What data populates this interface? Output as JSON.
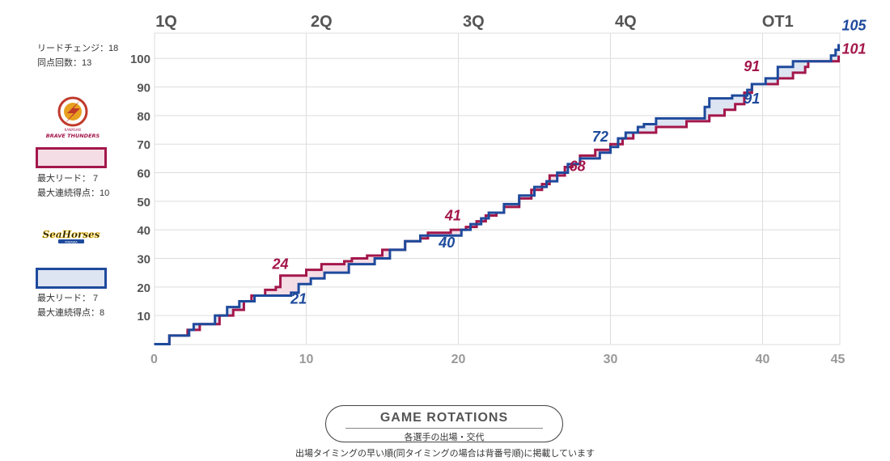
{
  "colors": {
    "team_a": "#a3174b",
    "team_b": "#1e4a9c",
    "team_a_fill": "#f5dde6",
    "team_b_fill": "#dde4f2",
    "grid": "#dddddd",
    "axis_text": "#999999"
  },
  "stats": {
    "lead_changes": "リードチェンジ：18",
    "ties": "同点回数：13"
  },
  "team_a": {
    "logo_name": "BRAVE THUNDERS",
    "logo_sub": "KAWASAKI",
    "max_lead": "最大リード：  7",
    "max_run": "最大連続得点：10"
  },
  "team_b": {
    "logo_name": "SeaHorses",
    "logo_sub": "MIKAWA",
    "max_lead": "最大リード：  7",
    "max_run": "最大連続得点：8"
  },
  "rotation_button": {
    "title": "GAME ROTATIONS",
    "subtitle": "各選手の出場・交代"
  },
  "footnote": "出場タイミングの早い順(同タイミングの場合は背番号順)に掲載しています",
  "chart_data": {
    "type": "line",
    "xlim": [
      0,
      45
    ],
    "ylim": [
      0,
      107
    ],
    "x_ticks": [
      0,
      10,
      20,
      30,
      40,
      45
    ],
    "y_ticks": [
      10,
      20,
      30,
      40,
      50,
      60,
      70,
      80,
      90,
      100
    ],
    "grid": true,
    "period_labels": [
      {
        "label": "1Q",
        "x": 0.8
      },
      {
        "label": "2Q",
        "x": 11
      },
      {
        "label": "3Q",
        "x": 21
      },
      {
        "label": "4Q",
        "x": 31
      },
      {
        "label": "OT1",
        "x": 41
      }
    ],
    "series": [
      {
        "name": "BRAVE THUNDERS",
        "color": "#a3174b",
        "points": [
          [
            0,
            0
          ],
          [
            1.0,
            3
          ],
          [
            2.2,
            5
          ],
          [
            3,
            7
          ],
          [
            4.3,
            10
          ],
          [
            5.2,
            12
          ],
          [
            5.9,
            15
          ],
          [
            6.4,
            17
          ],
          [
            7.3,
            19
          ],
          [
            8.0,
            20
          ],
          [
            8.3,
            24
          ],
          [
            10,
            26
          ],
          [
            11,
            28
          ],
          [
            12.5,
            29
          ],
          [
            13,
            30
          ],
          [
            14,
            31
          ],
          [
            15,
            33
          ],
          [
            16.5,
            36
          ],
          [
            17.5,
            37
          ],
          [
            18.0,
            39
          ],
          [
            19.5,
            40
          ],
          [
            20.5,
            41
          ],
          [
            21.2,
            43
          ],
          [
            21.8,
            45
          ],
          [
            22.5,
            46
          ],
          [
            23.0,
            48
          ],
          [
            24.0,
            51
          ],
          [
            24.8,
            54
          ],
          [
            25.5,
            56
          ],
          [
            26.0,
            59
          ],
          [
            27.0,
            62
          ],
          [
            27.5,
            63
          ],
          [
            28.0,
            66
          ],
          [
            29.0,
            68
          ],
          [
            30.0,
            70
          ],
          [
            30.8,
            72
          ],
          [
            31.5,
            74
          ],
          [
            33,
            76
          ],
          [
            35,
            78
          ],
          [
            36.5,
            80
          ],
          [
            37.5,
            82
          ],
          [
            38.2,
            84
          ],
          [
            38.8,
            88
          ],
          [
            39.3,
            91
          ],
          [
            41,
            93
          ],
          [
            42,
            95
          ],
          [
            42.8,
            97
          ],
          [
            43,
            99
          ],
          [
            45,
            101
          ]
        ]
      },
      {
        "name": "SeaHorses",
        "color": "#1e4a9c",
        "points": [
          [
            0,
            0
          ],
          [
            1.0,
            3
          ],
          [
            2.3,
            5
          ],
          [
            2.6,
            7
          ],
          [
            4.0,
            10
          ],
          [
            4.8,
            13
          ],
          [
            5.6,
            15
          ],
          [
            6.6,
            17
          ],
          [
            7.7,
            17
          ],
          [
            9.0,
            18
          ],
          [
            9.5,
            21
          ],
          [
            10.3,
            23
          ],
          [
            11.2,
            25
          ],
          [
            12.8,
            28
          ],
          [
            14.5,
            30
          ],
          [
            15.5,
            33
          ],
          [
            16.5,
            36
          ],
          [
            17.5,
            38
          ],
          [
            18.5,
            38
          ],
          [
            20.0,
            38
          ],
          [
            20.2,
            40
          ],
          [
            20.8,
            42
          ],
          [
            21.5,
            44
          ],
          [
            22.0,
            46
          ],
          [
            23.0,
            49
          ],
          [
            24.0,
            52
          ],
          [
            25.0,
            55
          ],
          [
            25.8,
            57
          ],
          [
            26.5,
            60
          ],
          [
            27.2,
            63
          ],
          [
            28.0,
            65
          ],
          [
            29.3,
            67
          ],
          [
            30.0,
            69
          ],
          [
            30.5,
            72
          ],
          [
            31.0,
            74
          ],
          [
            31.8,
            76
          ],
          [
            32.2,
            77
          ],
          [
            33,
            79
          ],
          [
            36.2,
            83
          ],
          [
            36.5,
            86
          ],
          [
            38.0,
            87
          ],
          [
            39.0,
            89
          ],
          [
            39.3,
            91
          ],
          [
            40.2,
            93
          ],
          [
            41.0,
            97
          ],
          [
            42.0,
            99
          ],
          [
            43.2,
            99
          ],
          [
            44.5,
            101
          ],
          [
            44.8,
            103
          ],
          [
            45,
            105
          ]
        ]
      }
    ],
    "annotations": [
      {
        "text": "24",
        "x": 8.3,
        "y": 24,
        "team": "a"
      },
      {
        "text": "21",
        "x": 9.5,
        "y": 21,
        "team": "b"
      },
      {
        "text": "41",
        "x": 20.5,
        "y": 41,
        "team": "a"
      },
      {
        "text": "40",
        "x": 20.2,
        "y": 40,
        "team": "b"
      },
      {
        "text": "72",
        "x": 30.5,
        "y": 72,
        "team": "b"
      },
      {
        "text": "68",
        "x": 29.0,
        "y": 68,
        "team": "a"
      },
      {
        "text": "91",
        "x": 39.3,
        "y": 91,
        "team": "a"
      },
      {
        "text": "91",
        "x": 39.3,
        "y": 91,
        "team": "b"
      },
      {
        "text": "105",
        "x": 45,
        "y": 105,
        "team": "b"
      },
      {
        "text": "101",
        "x": 45,
        "y": 101,
        "team": "a"
      }
    ]
  }
}
